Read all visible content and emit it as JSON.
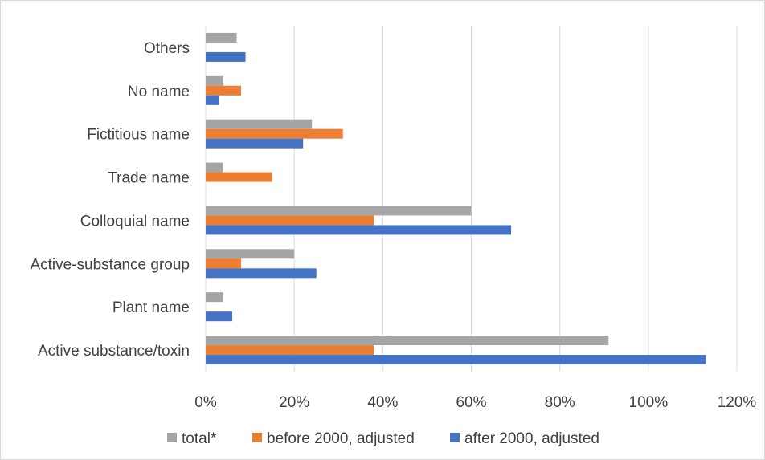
{
  "chart_data": {
    "type": "bar",
    "orientation": "horizontal",
    "categories": [
      "Others",
      "No name",
      "Fictitious name",
      "Trade name",
      "Colloquial name",
      "Active-substance group",
      "Plant name",
      "Active substance/toxin"
    ],
    "series": [
      {
        "name": "total*",
        "color": "#a5a5a5",
        "values": [
          7,
          4,
          24,
          4,
          60,
          20,
          4,
          91
        ]
      },
      {
        "name": "before 2000, adjusted",
        "color": "#ed7d31",
        "values": [
          null,
          8,
          31,
          15,
          38,
          8,
          null,
          38
        ]
      },
      {
        "name": "after 2000, adjusted",
        "color": "#4472c4",
        "values": [
          9,
          3,
          22,
          null,
          69,
          25,
          6,
          113
        ]
      }
    ],
    "xlim": [
      0,
      120
    ],
    "xticks": [
      "0%",
      "20%",
      "40%",
      "60%",
      "80%",
      "100%",
      "120%"
    ],
    "grid": true,
    "legend_position": "bottom"
  }
}
